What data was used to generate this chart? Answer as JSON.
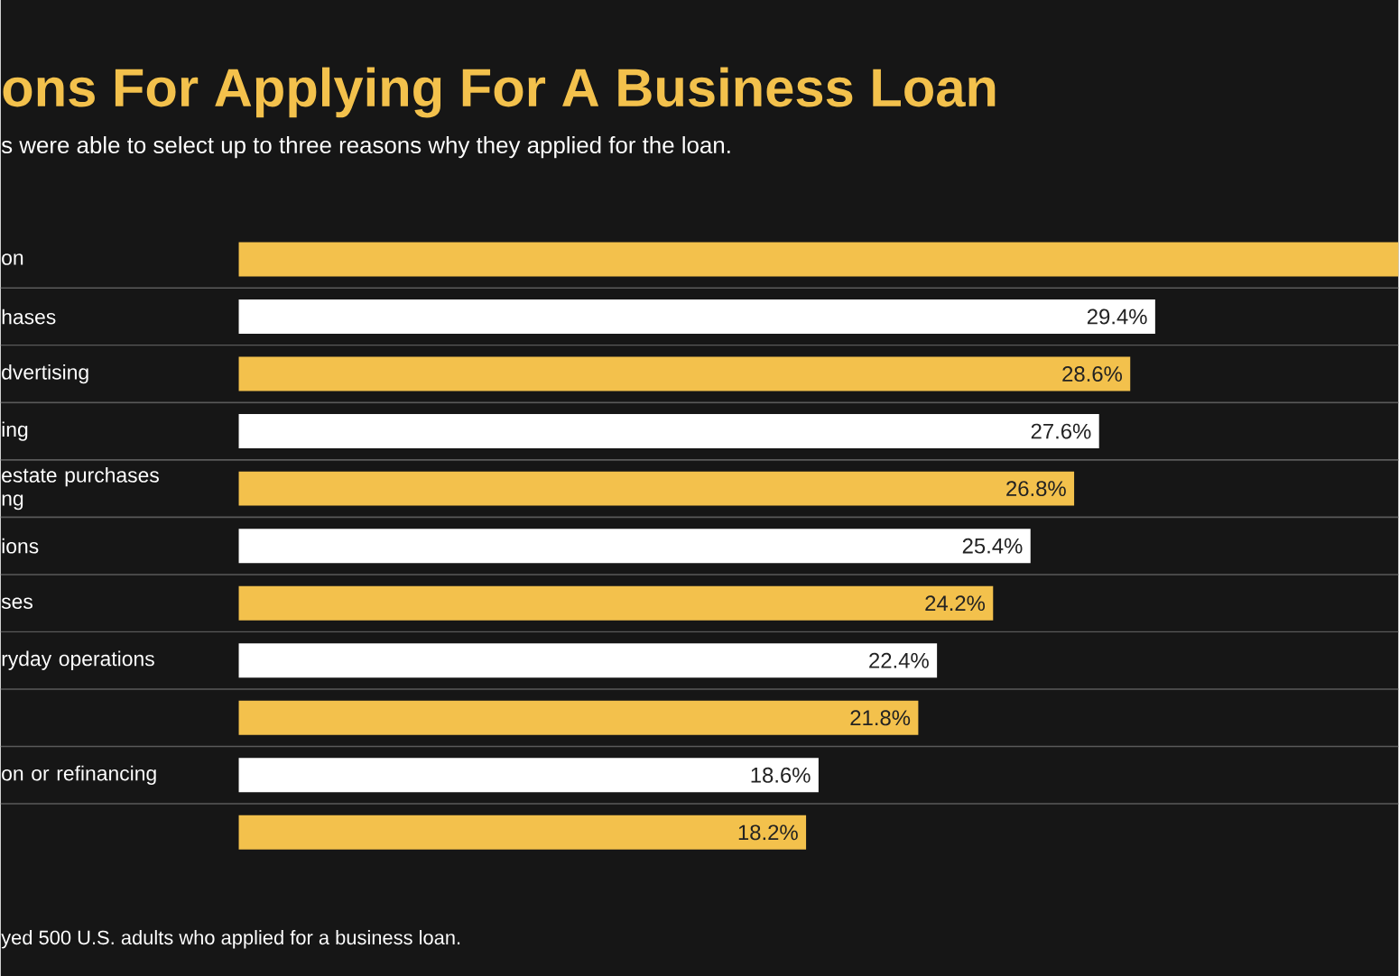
{
  "chart_data": {
    "type": "bar",
    "orientation": "horizontal",
    "title": "ons For Applying For A Business Loan",
    "subtitle": "s were able to select up to three reasons why they applied for the loan.",
    "annotations": [
      "yed 500 U.S. adults who applied for a business loan."
    ],
    "categories": [
      "on",
      "hases",
      "dvertising",
      "ing",
      "estate purchases ng",
      "ions",
      "ses",
      "ryday operations",
      null,
      "on or refinancing",
      null
    ],
    "values": [
      37.2,
      29.4,
      28.6,
      27.6,
      26.8,
      25.4,
      24.2,
      22.4,
      21.8,
      18.6,
      18.2
    ],
    "value_labels": [
      null,
      "29.4%",
      "28.6%",
      "27.6%",
      "26.8%",
      "25.4%",
      "24.2%",
      "22.4%",
      "21.8%",
      "18.6%",
      "18.2%"
    ],
    "colors": [
      "#f3c14c",
      "#ffffff",
      "#f3c14c",
      "#ffffff",
      "#f3c14c",
      "#ffffff",
      "#f3c14c",
      "#ffffff",
      "#f3c14c",
      "#ffffff",
      "#f3c14c"
    ],
    "xlim": [
      0,
      37.2
    ],
    "tick_labels": "y"
  }
}
